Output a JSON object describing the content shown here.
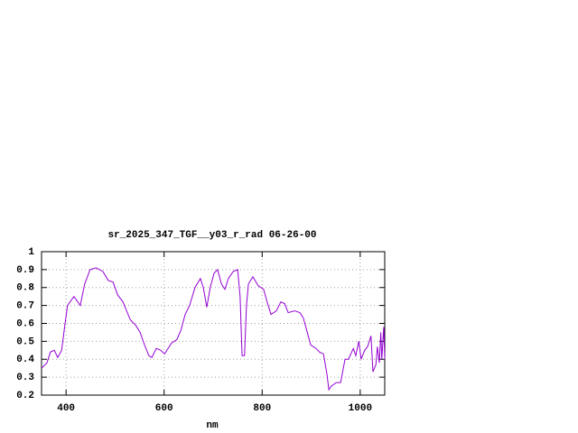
{
  "chart_data": {
    "type": "line",
    "title": "sr_2025_347_TGF__y03_r_rad 06-26-00",
    "xlabel": "nm",
    "x": [
      350,
      361,
      368,
      376,
      383,
      391,
      398,
      403,
      416,
      424,
      429,
      438,
      449,
      461,
      475,
      486,
      496,
      505,
      516,
      531,
      542,
      551,
      560,
      569,
      575,
      584,
      593,
      601,
      615,
      626,
      634,
      643,
      652,
      663,
      674,
      680,
      687,
      694,
      702,
      709,
      717,
      724,
      731,
      741,
      750,
      755,
      759,
      764,
      768,
      772,
      781,
      792,
      803,
      810,
      818,
      829,
      838,
      846,
      853,
      866,
      877,
      884,
      892,
      899,
      910,
      917,
      925,
      932,
      936,
      941,
      951,
      960,
      969,
      976,
      986,
      991,
      997,
      1002,
      1009,
      1015,
      1022,
      1026,
      1032,
      1035,
      1039,
      1042,
      1044,
      1048,
      1050
    ],
    "series": [
      {
        "color": "#9400d3",
        "values": [
          0.35,
          0.38,
          0.44,
          0.45,
          0.41,
          0.45,
          0.6,
          0.7,
          0.75,
          0.72,
          0.7,
          0.82,
          0.9,
          0.91,
          0.89,
          0.84,
          0.83,
          0.76,
          0.72,
          0.62,
          0.59,
          0.55,
          0.48,
          0.42,
          0.41,
          0.46,
          0.45,
          0.43,
          0.49,
          0.51,
          0.56,
          0.65,
          0.7,
          0.8,
          0.85,
          0.8,
          0.69,
          0.8,
          0.88,
          0.9,
          0.82,
          0.79,
          0.85,
          0.89,
          0.9,
          0.75,
          0.42,
          0.42,
          0.7,
          0.82,
          0.86,
          0.81,
          0.79,
          0.72,
          0.65,
          0.67,
          0.72,
          0.71,
          0.66,
          0.67,
          0.66,
          0.63,
          0.55,
          0.48,
          0.46,
          0.44,
          0.43,
          0.32,
          0.23,
          0.25,
          0.27,
          0.27,
          0.4,
          0.4,
          0.46,
          0.42,
          0.5,
          0.4,
          0.45,
          0.47,
          0.53,
          0.33,
          0.37,
          0.47,
          0.38,
          0.55,
          0.4,
          0.58,
          0.4
        ]
      }
    ],
    "xlim": [
      350,
      1050
    ],
    "xticks": [
      400,
      600,
      800,
      1000
    ],
    "ylim": [
      0.2,
      1
    ],
    "yticks": [
      0.2,
      0.3,
      0.4,
      0.5,
      0.6,
      0.7,
      0.8,
      0.9,
      1
    ],
    "grid": true
  }
}
